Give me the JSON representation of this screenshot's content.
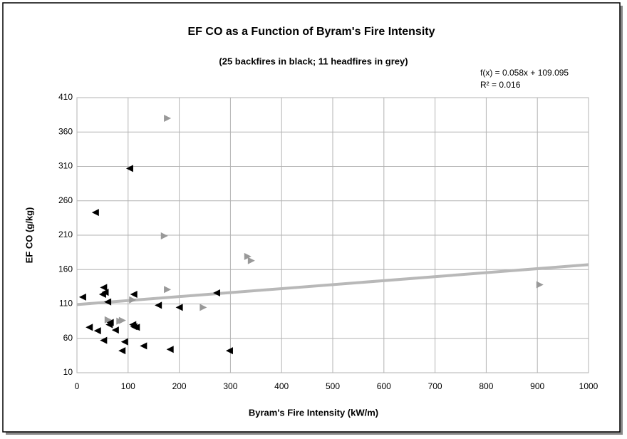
{
  "chart_data": {
    "type": "scatter",
    "title": "EF CO as a Function of Byram's Fire Intensity",
    "subtitle": "(25 backfires in black; 11 headfires in grey)",
    "x_label": "Byram's Fire Intensity (kW/m)",
    "y_label": "EF CO (g/kg)",
    "xlim": [
      0,
      1000
    ],
    "ylim": [
      10,
      410
    ],
    "xticks": [
      0,
      100,
      200,
      300,
      400,
      500,
      600,
      700,
      800,
      900,
      1000
    ],
    "yticks": [
      10,
      60,
      110,
      160,
      210,
      260,
      310,
      360,
      410
    ],
    "grid": true,
    "series": [
      {
        "color": "#000000",
        "marker": "triangle-left",
        "x": [
          11,
          36,
          103,
          24,
          40,
          52,
          50,
          52,
          55,
          60,
          63,
          65,
          75,
          88,
          93,
          111,
          116,
          111,
          130,
          159,
          182,
          200,
          273,
          298,
          109
        ],
        "values": [
          120,
          243,
          307,
          76,
          71,
          57,
          124,
          134,
          127,
          113,
          80,
          83,
          72,
          42,
          55,
          77,
          76,
          124,
          49,
          108,
          44,
          105,
          126,
          42,
          80
        ]
      },
      {
        "color": "#999999",
        "marker": "triangle-right",
        "x": [
          177,
          171,
          177,
          109,
          89,
          61,
          247,
          334,
          341,
          905,
          84
        ],
        "values": [
          380,
          209,
          131,
          116,
          86,
          87,
          105,
          179,
          173,
          138,
          85
        ]
      }
    ],
    "trendline": {
      "slope": 0.058,
      "intercept": 109.095,
      "color": "#b8b8b8",
      "label": "f(x) = 0.058x + 109.095",
      "r2_label": "R² = 0.016"
    }
  }
}
